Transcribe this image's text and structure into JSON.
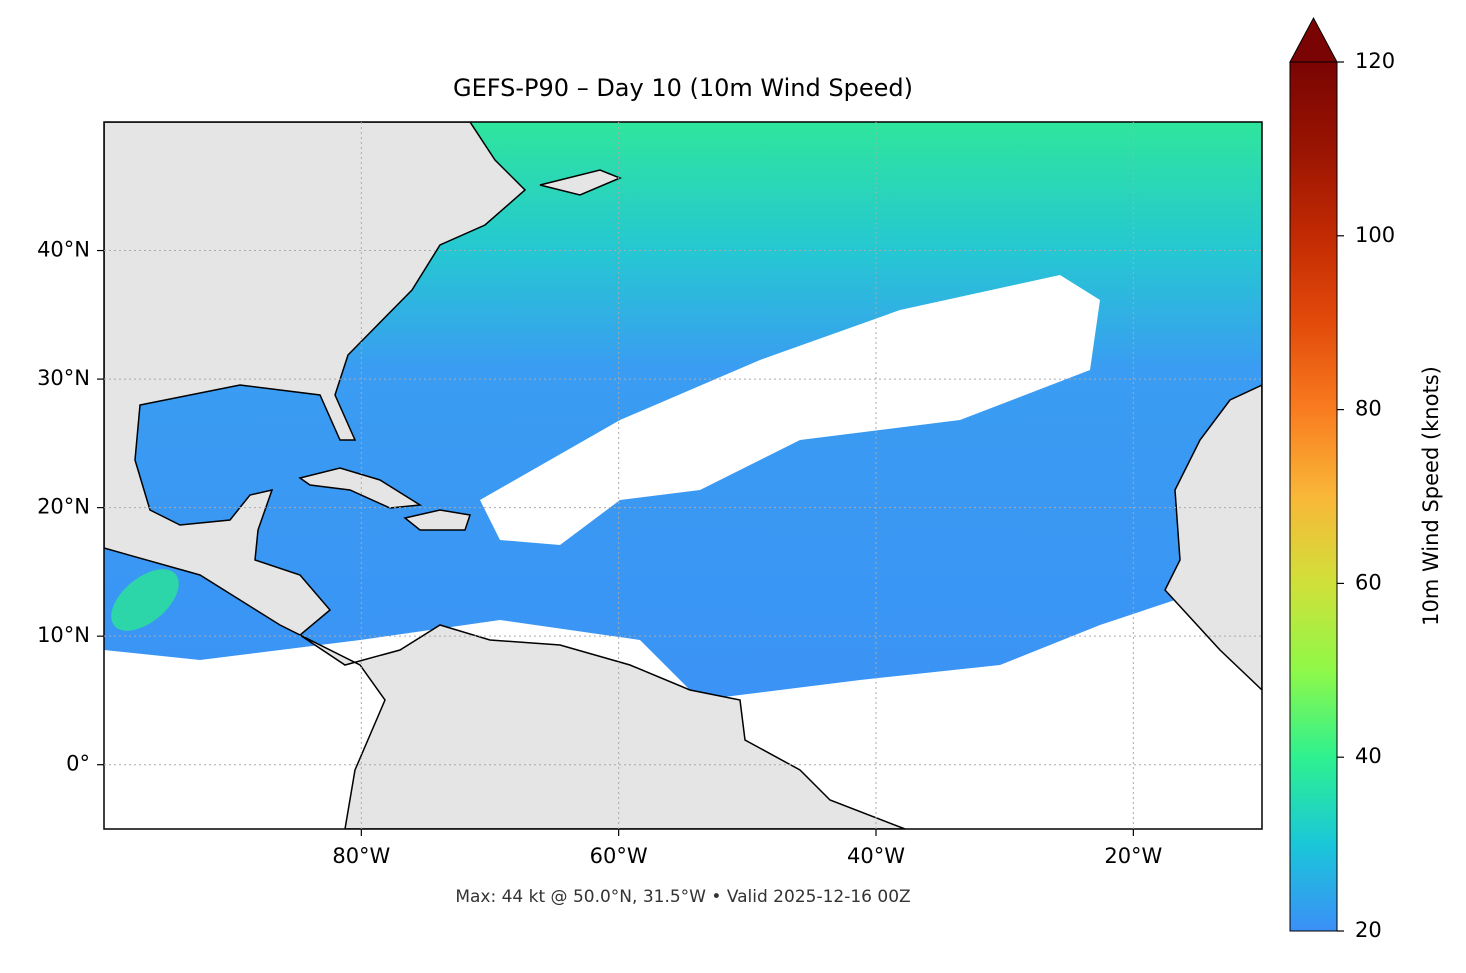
{
  "chart_data": {
    "type": "map",
    "title": "GEFS-P90 – Day 10 (10m Wind Speed)",
    "footer": "Max: 44 kt @ 50.0°N, 31.5°W • Valid 2025-12-16 00Z",
    "xlim": [
      -100,
      -10
    ],
    "ylim": [
      -5,
      50
    ],
    "xticks": [
      {
        "value": -80,
        "label": "80°W"
      },
      {
        "value": -60,
        "label": "60°W"
      },
      {
        "value": -40,
        "label": "40°W"
      },
      {
        "value": -20,
        "label": "20°W"
      }
    ],
    "yticks": [
      {
        "value": 0,
        "label": "0°"
      },
      {
        "value": 10,
        "label": "10°N"
      },
      {
        "value": 20,
        "label": "20°N"
      },
      {
        "value": 30,
        "label": "30°N"
      },
      {
        "value": 40,
        "label": "40°N"
      }
    ],
    "grid": true,
    "colorbar": {
      "label": "10m Wind Speed (knots)",
      "lim": [
        20,
        120
      ],
      "ticks": [
        20,
        40,
        60,
        80,
        100,
        120
      ],
      "extend": "max"
    }
  }
}
